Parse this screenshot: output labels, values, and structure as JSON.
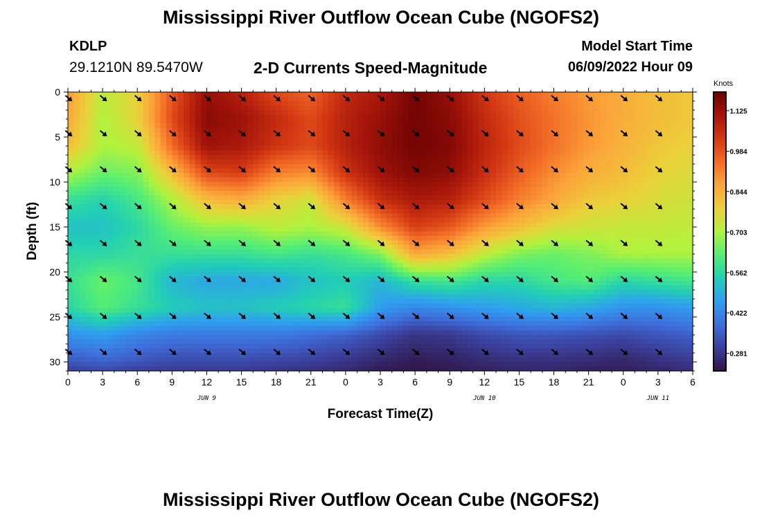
{
  "header": {
    "title": "Mississippi River Outflow Ocean Cube (NGOFS2)",
    "station": "KDLP",
    "coords": "29.1210N  89.5470W",
    "subtitle": "2-D Currents Speed-Magnitude",
    "model_label": "Model Start Time",
    "model_time": "06/09/2022 Hour 09"
  },
  "footer": {
    "title": "Mississippi River Outflow Ocean Cube (NGOFS2)"
  },
  "chart_data": {
    "type": "heatmap",
    "xlabel": "Forecast Time(Z)",
    "ylabel": "Depth (ft)",
    "x_ticks": [
      "0",
      "3",
      "6",
      "9",
      "12",
      "15",
      "18",
      "21",
      "0",
      "3",
      "6",
      "9",
      "12",
      "15",
      "18",
      "21",
      "0",
      "3",
      "6"
    ],
    "date_labels": [
      {
        "label": "JUN 9",
        "hour": 12
      },
      {
        "label": "JUN 10",
        "hour": 36
      },
      {
        "label": "JUN 11",
        "hour": 51
      }
    ],
    "xlim": [
      0,
      54
    ],
    "y_ticks": [
      0,
      5,
      10,
      15,
      20,
      25,
      30
    ],
    "ylim": [
      0,
      31
    ],
    "colorbar": {
      "units": "Knots",
      "ticks": [
        1.125,
        0.984,
        0.844,
        0.703,
        0.562,
        0.422,
        0.281
      ],
      "tick_labels": [
        "1.125",
        "0.984",
        "0.844",
        "0.703",
        "0.562",
        "0.422",
        "0.281"
      ],
      "min": 0.22,
      "max": 1.19,
      "colors": [
        "#301648",
        "#3b3f9a",
        "#3e6fdc",
        "#2f9ff0",
        "#22cfb4",
        "#56ee73",
        "#b2f23d",
        "#eccf3a",
        "#fba43a",
        "#f26c27",
        "#d33813",
        "#a5150a",
        "#6c0202"
      ]
    },
    "arrow_times": [
      0,
      3,
      6,
      9,
      12,
      15,
      18,
      21,
      24,
      27,
      30,
      33,
      36,
      39,
      42,
      45,
      48,
      51
    ],
    "arrow_depths": [
      0.3,
      4.2,
      8.2,
      12.3,
      16.4,
      20.4,
      24.5,
      28.5
    ],
    "arrow_direction": "southeast",
    "heatmap_times": [
      0,
      3,
      6,
      9,
      12,
      15,
      18,
      21,
      24,
      27,
      30,
      33,
      36,
      39,
      42,
      45,
      48,
      51,
      54
    ],
    "heatmap_depths": [
      0,
      3,
      6,
      9,
      12,
      15,
      18,
      21,
      24,
      27,
      30,
      31
    ],
    "speed_knots": [
      [
        0.88,
        0.72,
        0.78,
        0.98,
        1.13,
        1.08,
        1.0,
        0.96,
        1.06,
        1.1,
        1.18,
        1.13,
        1.03,
        0.97,
        0.92,
        0.88,
        0.85,
        0.82,
        0.8
      ],
      [
        0.86,
        0.7,
        0.78,
        1.0,
        1.15,
        1.12,
        1.06,
        1.0,
        1.08,
        1.13,
        1.18,
        1.15,
        1.06,
        0.99,
        0.94,
        0.89,
        0.85,
        0.82,
        0.8
      ],
      [
        0.82,
        0.7,
        0.72,
        0.95,
        1.12,
        1.1,
        1.04,
        1.0,
        1.08,
        1.14,
        1.18,
        1.16,
        1.07,
        1.0,
        0.94,
        0.88,
        0.84,
        0.8,
        0.78
      ],
      [
        0.7,
        0.64,
        0.66,
        0.82,
        1.0,
        1.02,
        0.92,
        0.9,
        1.04,
        1.12,
        1.16,
        1.14,
        1.05,
        0.97,
        0.9,
        0.85,
        0.82,
        0.78,
        0.76
      ],
      [
        0.58,
        0.55,
        0.6,
        0.7,
        0.82,
        0.85,
        0.78,
        0.74,
        0.92,
        1.05,
        1.1,
        1.08,
        1.0,
        0.92,
        0.86,
        0.8,
        0.78,
        0.76,
        0.74
      ],
      [
        0.52,
        0.52,
        0.56,
        0.64,
        0.68,
        0.68,
        0.72,
        0.7,
        0.74,
        0.9,
        1.02,
        0.98,
        0.88,
        0.82,
        0.76,
        0.74,
        0.73,
        0.73,
        0.72
      ],
      [
        0.56,
        0.56,
        0.58,
        0.58,
        0.58,
        0.58,
        0.6,
        0.58,
        0.6,
        0.66,
        0.86,
        0.82,
        0.72,
        0.66,
        0.64,
        0.66,
        0.7,
        0.7,
        0.7
      ],
      [
        0.58,
        0.64,
        0.6,
        0.5,
        0.48,
        0.48,
        0.48,
        0.52,
        0.54,
        0.5,
        0.58,
        0.6,
        0.56,
        0.56,
        0.6,
        0.62,
        0.56,
        0.58,
        0.6
      ],
      [
        0.56,
        0.62,
        0.58,
        0.54,
        0.52,
        0.52,
        0.54,
        0.56,
        0.58,
        0.46,
        0.42,
        0.44,
        0.46,
        0.48,
        0.5,
        0.48,
        0.44,
        0.44,
        0.46
      ],
      [
        0.44,
        0.46,
        0.42,
        0.4,
        0.4,
        0.4,
        0.4,
        0.38,
        0.36,
        0.32,
        0.28,
        0.29,
        0.32,
        0.34,
        0.34,
        0.33,
        0.32,
        0.34,
        0.36
      ],
      [
        0.34,
        0.36,
        0.34,
        0.32,
        0.32,
        0.32,
        0.31,
        0.3,
        0.28,
        0.25,
        0.23,
        0.24,
        0.26,
        0.27,
        0.27,
        0.26,
        0.25,
        0.27,
        0.29
      ],
      [
        0.3,
        0.32,
        0.3,
        0.29,
        0.29,
        0.29,
        0.28,
        0.27,
        0.26,
        0.23,
        0.22,
        0.23,
        0.24,
        0.25,
        0.25,
        0.24,
        0.24,
        0.25,
        0.27
      ]
    ]
  }
}
